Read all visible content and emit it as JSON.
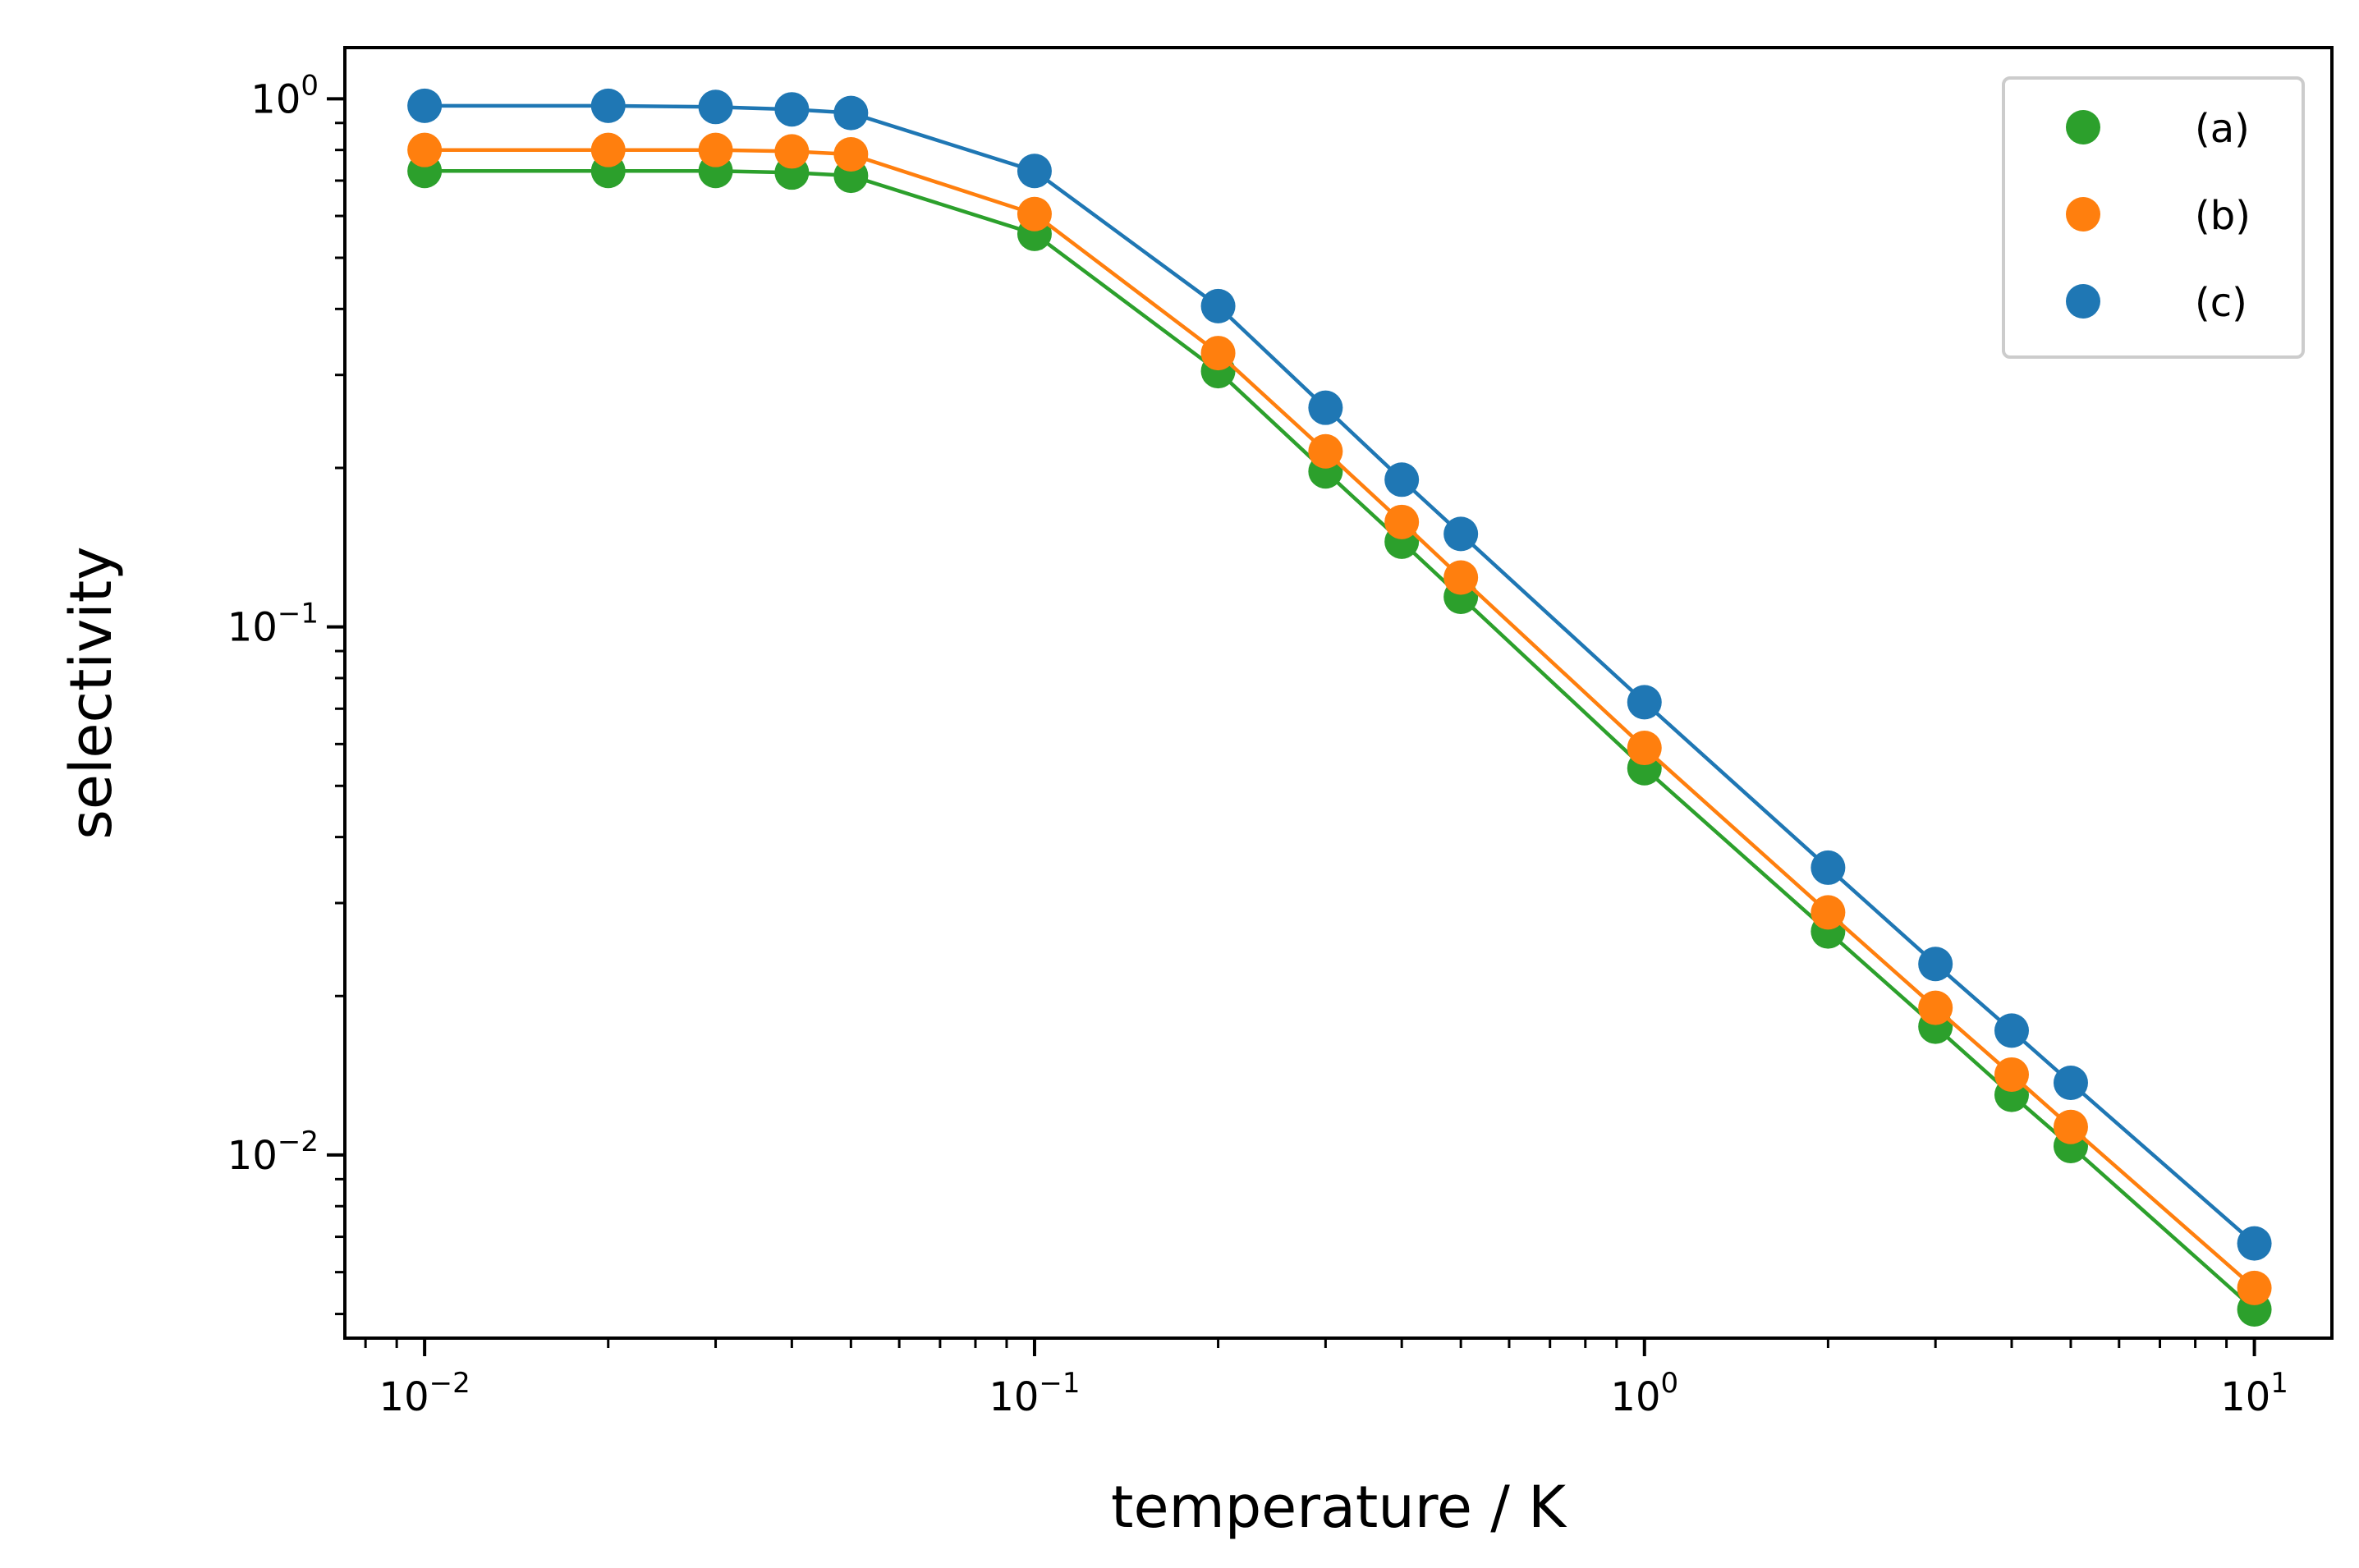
{
  "chart_data": {
    "type": "line",
    "title": "",
    "xlabel": "temperature / K",
    "ylabel": "selectivity",
    "xscale": "log",
    "yscale": "log",
    "xlim": [
      0.0074,
      13.4
    ],
    "ylim": [
      0.0045,
      1.25
    ],
    "grid": false,
    "legend_position": "top-right",
    "x": [
      0.01,
      0.02,
      0.03,
      0.04,
      0.05,
      0.1,
      0.2,
      0.3,
      0.4,
      0.5,
      1,
      2,
      3,
      4,
      5,
      10
    ],
    "x_ticks": [
      {
        "value": 0.01,
        "base": "10",
        "exp": "−2"
      },
      {
        "value": 0.1,
        "base": "10",
        "exp": "−1"
      },
      {
        "value": 1,
        "base": "10",
        "exp": "0"
      },
      {
        "value": 10,
        "base": "10",
        "exp": "1"
      }
    ],
    "y_ticks": [
      {
        "value": 0.01,
        "base": "10",
        "exp": "−2"
      },
      {
        "value": 0.1,
        "base": "10",
        "exp": "−1"
      },
      {
        "value": 1,
        "base": "10",
        "exp": "0"
      }
    ],
    "series": [
      {
        "name": "(c)",
        "color": "#1f77b4",
        "values": [
          0.97,
          0.97,
          0.965,
          0.955,
          0.94,
          0.73,
          0.405,
          0.26,
          0.19,
          0.15,
          0.072,
          0.035,
          0.023,
          0.0172,
          0.0137,
          0.0068
        ]
      },
      {
        "name": "(b)",
        "color": "#ff7f0e",
        "values": [
          0.8,
          0.8,
          0.8,
          0.795,
          0.785,
          0.605,
          0.33,
          0.215,
          0.158,
          0.124,
          0.059,
          0.0288,
          0.019,
          0.0142,
          0.0113,
          0.0056
        ]
      },
      {
        "name": "(a)",
        "color": "#2ca02c",
        "values": [
          0.73,
          0.73,
          0.73,
          0.725,
          0.715,
          0.555,
          0.305,
          0.197,
          0.145,
          0.114,
          0.054,
          0.0265,
          0.0175,
          0.013,
          0.0104,
          0.0051
        ]
      }
    ],
    "legend_order": [
      "(a)",
      "(b)",
      "(c)"
    ]
  }
}
